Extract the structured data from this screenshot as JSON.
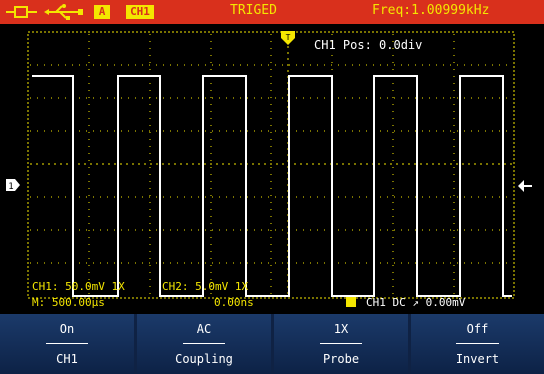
{
  "status_bar": {
    "channel_badge": "A",
    "channel_label": "CH1",
    "trigger_status": "TRIGED",
    "frequency": "Freq:1.00999kHz",
    "icons": [
      "probe-icon",
      "usb-icon"
    ]
  },
  "screen": {
    "ch1_position": "CH1 Pos:  0.0div",
    "ch1_scale": "CH1: 50.0mV 1X",
    "ch2_scale": "CH2: 5.0mV 1X",
    "timebase": "M: 500.00µs",
    "time_offset": "0.00ns",
    "trigger_info": "CH1 DC ↗ 0.00mV",
    "waveform_color": "#ffffff",
    "grid_color": "#f4e600"
  },
  "menu": [
    {
      "value": "On",
      "label": "CH1"
    },
    {
      "value": "AC",
      "label": "Coupling"
    },
    {
      "value": "1X",
      "label": "Probe"
    },
    {
      "value": "Off",
      "label": "Invert"
    }
  ],
  "colors": {
    "status_bg": "#d9301c",
    "status_text": "#f4e600",
    "menu_bg": "#0f2244"
  }
}
